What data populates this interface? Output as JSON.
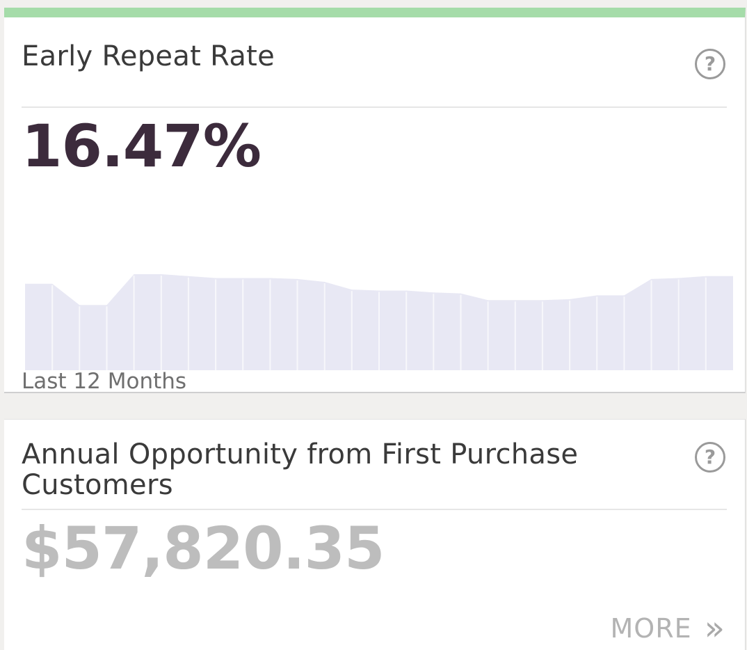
{
  "early_repeat": {
    "title": "Early Repeat Rate",
    "help_label": "?",
    "value": "16.47%",
    "caption": "Last 12 Months",
    "sparkline": {
      "fill_color": "#e8e8f4",
      "divider_color": "#f7f7fb",
      "points": [
        0.9,
        0.9,
        0.68,
        0.68,
        1.0,
        1.0,
        0.98,
        0.96,
        0.96,
        0.96,
        0.95,
        0.92,
        0.84,
        0.83,
        0.83,
        0.81,
        0.8,
        0.73,
        0.73,
        0.73,
        0.74,
        0.78,
        0.78,
        0.95,
        0.96,
        0.98,
        0.98
      ]
    }
  },
  "annual_opportunity": {
    "title": "Annual Opportunity from First Purchase Customers",
    "help_label": "?",
    "value": "$57,820.35",
    "more_label": "MORE",
    "more_icon": "»"
  },
  "colors": {
    "accent_bar": "#a5dca9",
    "primary_metric": "#3c2b3c",
    "muted_metric": "#bdbdbd"
  }
}
